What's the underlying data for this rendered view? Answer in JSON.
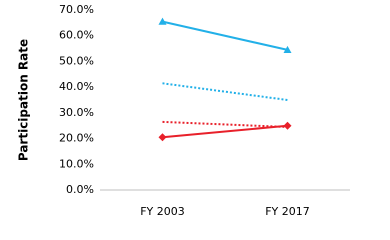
{
  "chart_data": {
    "type": "line",
    "y_label": "Participation Rate",
    "categories": [
      "FY 2003",
      "FY 2017"
    ],
    "series": [
      {
        "color": "#22b0e8",
        "dashed": false,
        "marker": "triangle",
        "values": [
          65.5,
          54.5
        ]
      },
      {
        "color": "#22b0e8",
        "dashed": true,
        "marker": null,
        "values": [
          41.5,
          35
        ]
      },
      {
        "color": "#e8202a",
        "dashed": true,
        "marker": null,
        "values": [
          26.5,
          24.5
        ]
      },
      {
        "color": "#e8202a",
        "dashed": false,
        "marker": "diamond",
        "values": [
          20.5,
          25
        ]
      }
    ],
    "ylim": [
      0,
      70
    ],
    "yticks": [
      {
        "value": 0,
        "label": "0.0%"
      },
      {
        "value": 10,
        "label": "10.0%"
      },
      {
        "value": 20,
        "label": "20.0%"
      },
      {
        "value": 30,
        "label": "30.0%"
      },
      {
        "value": 40,
        "label": "40.0%"
      },
      {
        "value": 50,
        "label": "50.0%"
      },
      {
        "value": 60,
        "label": "60.0%"
      },
      {
        "value": 70,
        "label": "70.0%"
      }
    ],
    "grid": false
  }
}
